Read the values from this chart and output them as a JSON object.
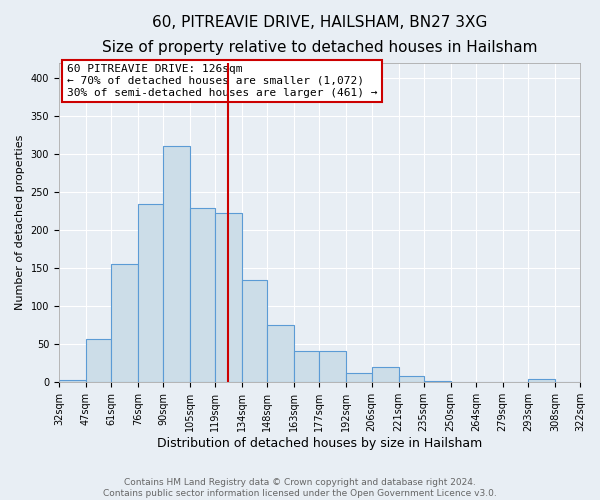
{
  "title": "60, PITREAVIE DRIVE, HAILSHAM, BN27 3XG",
  "subtitle": "Size of property relative to detached houses in Hailsham",
  "xlabel": "Distribution of detached houses by size in Hailsham",
  "ylabel": "Number of detached properties",
  "all_bar_values": [
    3,
    57,
    155,
    235,
    310,
    229,
    222,
    135,
    76,
    41,
    41,
    12,
    20,
    8,
    2,
    0,
    0,
    0,
    4,
    0
  ],
  "bar_labels": [
    "32sqm",
    "47sqm",
    "61sqm",
    "76sqm",
    "90sqm",
    "105sqm",
    "119sqm",
    "134sqm",
    "148sqm",
    "163sqm",
    "177sqm",
    "192sqm",
    "206sqm",
    "221sqm",
    "235sqm",
    "250sqm",
    "264sqm",
    "279sqm",
    "293sqm",
    "308sqm",
    "322sqm"
  ],
  "bin_edges": [
    32,
    47,
    61,
    76,
    90,
    105,
    119,
    134,
    148,
    163,
    177,
    192,
    206,
    221,
    235,
    250,
    264,
    279,
    293,
    308,
    322
  ],
  "bar_color": "#ccdde8",
  "bar_edge_color": "#5b9bd5",
  "vline_x": 126,
  "vline_color": "#cc0000",
  "ylim": [
    0,
    420
  ],
  "yticks": [
    0,
    50,
    100,
    150,
    200,
    250,
    300,
    350,
    400
  ],
  "annotation_title": "60 PITREAVIE DRIVE: 126sqm",
  "annotation_line1": "← 70% of detached houses are smaller (1,072)",
  "annotation_line2": "30% of semi-detached houses are larger (461) →",
  "annotation_box_color": "#ffffff",
  "annotation_box_edge": "#cc0000",
  "footer1": "Contains HM Land Registry data © Crown copyright and database right 2024.",
  "footer2": "Contains public sector information licensed under the Open Government Licence v3.0.",
  "bg_color": "#e8eef4",
  "plot_bg_color": "#e8eef4",
  "grid_color": "#ffffff",
  "title_fontsize": 11,
  "subtitle_fontsize": 9.5,
  "xlabel_fontsize": 9,
  "ylabel_fontsize": 8,
  "tick_fontsize": 7,
  "footer_fontsize": 6.5,
  "annot_fontsize": 8
}
